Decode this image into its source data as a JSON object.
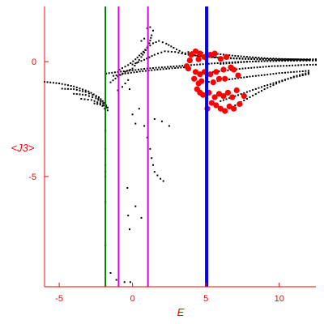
{
  "chart_data": {
    "type": "scatter",
    "title": "",
    "xlabel": "E",
    "ylabel": "<J3>",
    "xlim": [
      -6.0,
      12.5
    ],
    "ylim": [
      -9.8,
      2.4
    ],
    "x_ticks": [
      -5,
      0,
      5,
      10
    ],
    "x_tick_labels": [
      "-5",
      "0",
      "5",
      "10"
    ],
    "y_ticks": [
      0,
      -5
    ],
    "y_tick_labels": [
      "0",
      "-5"
    ],
    "grid": false,
    "axis_color": "#ff0000",
    "tick_label_color": "#ff0000",
    "vertical_lines": [
      {
        "x": -1.85,
        "color": "#007a00"
      },
      {
        "x": -0.95,
        "color": "#e000e0"
      },
      {
        "x": 1.05,
        "color": "#e000e0"
      },
      {
        "x": 5.05,
        "color": "#0000ff"
      }
    ],
    "series": [
      {
        "color": "#000000",
        "marker_size": "small",
        "curves": [
          {
            "points": [
              [
                -6.0,
                -0.88
              ],
              [
                -5.0,
                -0.95
              ],
              [
                -4.0,
                -1.08
              ],
              [
                -3.0,
                -1.3
              ],
              [
                -2.3,
                -1.55
              ],
              [
                -1.9,
                -1.8
              ],
              [
                -1.7,
                -2.0
              ]
            ]
          },
          {
            "points": [
              [
                -4.8,
                -1.18
              ],
              [
                -4.0,
                -1.2
              ],
              [
                -3.2,
                -1.32
              ],
              [
                -2.5,
                -1.52
              ],
              [
                -2.0,
                -1.8
              ],
              [
                -1.8,
                -1.95
              ]
            ]
          },
          {
            "points": [
              [
                -4.0,
                -1.4
              ],
              [
                -3.2,
                -1.45
              ],
              [
                -2.5,
                -1.6
              ],
              [
                -2.0,
                -1.82
              ],
              [
                -1.75,
                -2.0
              ]
            ]
          },
          {
            "points": [
              [
                -3.5,
                -1.62
              ],
              [
                -2.8,
                -1.67
              ],
              [
                -2.2,
                -1.82
              ],
              [
                -1.9,
                -2.05
              ]
            ]
          },
          {
            "points": [
              [
                -2.6,
                -1.82
              ],
              [
                -2.0,
                -1.9
              ],
              [
                -1.7,
                -2.12
              ]
            ]
          },
          {
            "points": [
              [
                -1.8,
                -0.52
              ],
              [
                -1.0,
                -0.45
              ],
              [
                0.0,
                -0.38
              ],
              [
                1.0,
                -0.3
              ],
              [
                2.0,
                -0.25
              ],
              [
                3.0,
                -0.2
              ],
              [
                4.0,
                -0.15
              ],
              [
                5.0,
                -0.1
              ],
              [
                6.0,
                -0.06
              ],
              [
                7.0,
                -0.02
              ],
              [
                8.0,
                0.0
              ],
              [
                9.0,
                0.02
              ],
              [
                10.0,
                0.04
              ],
              [
                11.0,
                0.05
              ],
              [
                12.5,
                0.06
              ]
            ]
          },
          {
            "points": [
              [
                -1.3,
                -0.62
              ],
              [
                -0.5,
                -0.52
              ],
              [
                0.5,
                -0.43
              ],
              [
                1.5,
                -0.36
              ],
              [
                2.5,
                -0.3
              ],
              [
                3.5,
                -0.25
              ]
            ]
          },
          {
            "points": [
              [
                -1.5,
                -0.9
              ],
              [
                -1.0,
                -0.65
              ],
              [
                -0.5,
                -0.45
              ],
              [
                0.0,
                -0.3
              ],
              [
                0.3,
                -0.05
              ],
              [
                0.6,
                0.2
              ],
              [
                0.9,
                0.5
              ],
              [
                1.15,
                0.8
              ],
              [
                1.3,
                1.15
              ]
            ]
          },
          {
            "points": [
              [
                -0.9,
                -0.35
              ],
              [
                -0.3,
                -0.15
              ],
              [
                0.2,
                0.1
              ],
              [
                0.6,
                0.35
              ],
              [
                1.0,
                0.6
              ],
              [
                1.4,
                0.8
              ],
              [
                1.8,
                0.9
              ],
              [
                2.3,
                0.78
              ],
              [
                2.8,
                0.6
              ],
              [
                3.4,
                0.4
              ],
              [
                4.0,
                0.3
              ],
              [
                4.8,
                0.22
              ],
              [
                5.6,
                0.18
              ],
              [
                6.5,
                0.14
              ],
              [
                7.5,
                0.12
              ],
              [
                8.5,
                0.1
              ],
              [
                9.5,
                0.08
              ],
              [
                10.5,
                0.08
              ],
              [
                11.5,
                0.08
              ],
              [
                12.5,
                0.08
              ]
            ]
          },
          {
            "points": [
              [
                0.0,
                -0.12
              ],
              [
                0.8,
                0.08
              ],
              [
                1.5,
                0.3
              ],
              [
                2.2,
                0.45
              ],
              [
                2.9,
                0.42
              ],
              [
                3.6,
                0.32
              ],
              [
                4.5,
                0.25
              ],
              [
                5.5,
                0.2
              ],
              [
                6.5,
                0.16
              ],
              [
                7.5,
                0.14
              ],
              [
                8.5,
                0.12
              ],
              [
                9.5,
                0.1
              ],
              [
                10.5,
                0.1
              ],
              [
                11.5,
                0.1
              ],
              [
                12.5,
                0.1
              ]
            ]
          },
          {
            "points": [
              [
                3.8,
                0.42
              ],
              [
                5.0,
                0.38
              ],
              [
                6.0,
                0.32
              ],
              [
                7.0,
                0.25
              ],
              [
                8.0,
                0.2
              ],
              [
                9.0,
                0.15
              ],
              [
                10.0,
                0.12
              ],
              [
                11.0,
                0.1
              ],
              [
                12.0,
                0.08
              ]
            ]
          },
          {
            "points": [
              [
                6.0,
                -0.1
              ],
              [
                7.0,
                -0.05
              ],
              [
                8.0,
                0.0
              ],
              [
                9.0,
                0.02
              ],
              [
                10.0,
                0.03
              ],
              [
                11.0,
                0.04
              ],
              [
                12.5,
                0.05
              ]
            ]
          },
          {
            "points": [
              [
                5.5,
                -0.45
              ],
              [
                6.5,
                -0.38
              ],
              [
                7.5,
                -0.3
              ],
              [
                8.5,
                -0.25
              ],
              [
                9.5,
                -0.2
              ],
              [
                10.5,
                -0.18
              ],
              [
                11.5,
                -0.15
              ],
              [
                12.5,
                -0.13
              ]
            ]
          },
          {
            "points": [
              [
                5.0,
                -0.9
              ],
              [
                6.0,
                -0.82
              ],
              [
                7.0,
                -0.74
              ],
              [
                8.0,
                -0.65
              ],
              [
                9.0,
                -0.58
              ],
              [
                10.0,
                -0.5
              ],
              [
                11.0,
                -0.45
              ],
              [
                12.0,
                -0.4
              ]
            ]
          },
          {
            "points": [
              [
                6.0,
                -1.72
              ],
              [
                7.0,
                -1.5
              ],
              [
                8.0,
                -1.28
              ],
              [
                9.0,
                -1.06
              ],
              [
                10.0,
                -0.86
              ],
              [
                11.0,
                -0.68
              ],
              [
                12.0,
                -0.54
              ]
            ]
          },
          {
            "points": [
              [
                7.0,
                -1.9
              ],
              [
                8.0,
                -1.55
              ],
              [
                9.0,
                -1.2
              ],
              [
                10.0,
                -0.9
              ],
              [
                11.0,
                -0.65
              ],
              [
                12.0,
                -0.48
              ]
            ]
          }
        ],
        "points": [
          [
            -1.85,
            -3.0
          ],
          [
            -1.85,
            -3.8
          ],
          [
            -1.85,
            -4.5
          ],
          [
            -1.85,
            -4.8
          ],
          [
            -1.85,
            -5.0
          ],
          [
            -1.85,
            -6.1
          ],
          [
            -1.85,
            -8.0
          ],
          [
            -1.5,
            -9.2
          ],
          [
            -1.1,
            -9.5
          ],
          [
            -0.55,
            -9.6
          ],
          [
            -0.15,
            -9.6
          ],
          [
            -0.35,
            -5.5
          ],
          [
            -0.3,
            -6.7
          ],
          [
            -0.2,
            -7.3
          ],
          [
            0.2,
            -6.3
          ],
          [
            0.6,
            -6.8
          ],
          [
            -0.2,
            -1.2
          ],
          [
            0.0,
            -2.3
          ],
          [
            0.2,
            -2.7
          ],
          [
            0.45,
            -2.05
          ],
          [
            0.8,
            -2.8
          ],
          [
            1.0,
            -3.3
          ],
          [
            1.2,
            -3.8
          ],
          [
            1.3,
            -4.2
          ],
          [
            1.4,
            -4.5
          ],
          [
            1.5,
            -4.8
          ],
          [
            1.7,
            -4.95
          ],
          [
            1.9,
            -5.1
          ],
          [
            2.1,
            -5.2
          ],
          [
            1.5,
            -2.5
          ],
          [
            2.0,
            -2.6
          ],
          [
            2.5,
            -2.8
          ],
          [
            -1.0,
            -1.25
          ],
          [
            -0.7,
            -1.1
          ],
          [
            -0.5,
            -0.95
          ],
          [
            -0.3,
            -0.8
          ],
          [
            0.6,
            0.9
          ],
          [
            0.8,
            1.0
          ],
          [
            1.0,
            1.45
          ],
          [
            1.2,
            1.5
          ],
          [
            1.4,
            1.35
          ]
        ]
      },
      {
        "color": "#ff0000",
        "marker_size": "large",
        "points": [
          [
            4.0,
            0.3
          ],
          [
            4.3,
            0.45
          ],
          [
            4.6,
            0.35
          ],
          [
            4.9,
            0.2
          ],
          [
            5.3,
            0.3
          ],
          [
            5.6,
            0.35
          ],
          [
            6.0,
            0.12
          ],
          [
            6.4,
            0.2
          ],
          [
            3.9,
            0.05
          ],
          [
            4.5,
            0.1
          ],
          [
            3.8,
            -0.3
          ],
          [
            4.3,
            -0.45
          ],
          [
            4.6,
            -0.55
          ],
          [
            4.9,
            -0.45
          ],
          [
            5.3,
            -0.55
          ],
          [
            5.7,
            -0.45
          ],
          [
            6.2,
            -0.35
          ],
          [
            6.7,
            -0.25
          ],
          [
            3.7,
            -0.2
          ],
          [
            4.2,
            -0.75
          ],
          [
            4.5,
            -0.95
          ],
          [
            4.7,
            -0.85
          ],
          [
            5.5,
            -0.9
          ],
          [
            5.9,
            -0.75
          ],
          [
            6.3,
            -0.75
          ],
          [
            6.9,
            -0.35
          ],
          [
            7.2,
            -0.6
          ],
          [
            4.4,
            -1.2
          ],
          [
            4.6,
            -1.35
          ],
          [
            4.8,
            -1.45
          ],
          [
            5.2,
            -1.35
          ],
          [
            5.6,
            -1.55
          ],
          [
            5.9,
            -1.4
          ],
          [
            6.2,
            -1.5
          ],
          [
            6.5,
            -1.35
          ],
          [
            6.8,
            -1.55
          ],
          [
            7.1,
            -1.25
          ],
          [
            5.4,
            -1.8
          ],
          [
            5.7,
            -1.9
          ],
          [
            6.0,
            -2.05
          ],
          [
            6.3,
            -2.15
          ],
          [
            6.6,
            -1.95
          ],
          [
            6.9,
            -2.05
          ],
          [
            7.3,
            -1.85
          ],
          [
            5.1,
            -2.05
          ],
          [
            7.6,
            -1.5
          ]
        ]
      }
    ]
  }
}
